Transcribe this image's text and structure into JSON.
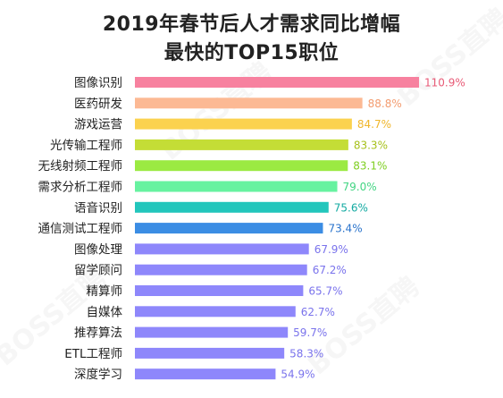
{
  "title_line1": "2019年春节后人才需求同比增幅",
  "title_line2": "最快的TOP15职位",
  "watermark": "BOSS直聘",
  "chart_data": {
    "type": "bar",
    "orientation": "horizontal",
    "title": "2019年春节后人才需求同比增幅 最快的TOP15职位",
    "categories": [
      "图像识别",
      "医药研发",
      "游戏运营",
      "光传输工程师",
      "无线射频工程师",
      "需求分析工程师",
      "语音识别",
      "通信测试工程师",
      "图像处理",
      "留学顾问",
      "精算师",
      "自媒体",
      "推荐算法",
      "ETL工程师",
      "深度学习"
    ],
    "values": [
      110.9,
      88.8,
      84.7,
      83.3,
      83.1,
      79.0,
      75.6,
      73.4,
      67.9,
      67.2,
      65.7,
      62.7,
      59.7,
      58.3,
      54.9
    ],
    "value_labels": [
      "110.9%",
      "88.8%",
      "84.7%",
      "83.3%",
      "83.1%",
      "79.0%",
      "75.6%",
      "73.4%",
      "67.9%",
      "67.2%",
      "65.7%",
      "62.7%",
      "59.7%",
      "58.3%",
      "54.9%"
    ],
    "colors": [
      "#f7819f",
      "#fcb994",
      "#fbd24f",
      "#c4dd36",
      "#9bea42",
      "#67f2a0",
      "#22c6bc",
      "#3b8de4",
      "#8e87fb",
      "#8e87fb",
      "#8e87fb",
      "#8e87fb",
      "#8e87fb",
      "#8e87fb",
      "#8e87fb"
    ],
    "label_colors": [
      "#e85b77",
      "#f39c70",
      "#f0b62a",
      "#a7c11c",
      "#7fcf22",
      "#43d583",
      "#13aaa2",
      "#2b74cc",
      "#7a73ec",
      "#7a73ec",
      "#7a73ec",
      "#7a73ec",
      "#7a73ec",
      "#7a73ec",
      "#7a73ec"
    ],
    "xlim": [
      0,
      110.9
    ],
    "xlabel": "",
    "ylabel": "",
    "grid": false,
    "legend": "none"
  }
}
